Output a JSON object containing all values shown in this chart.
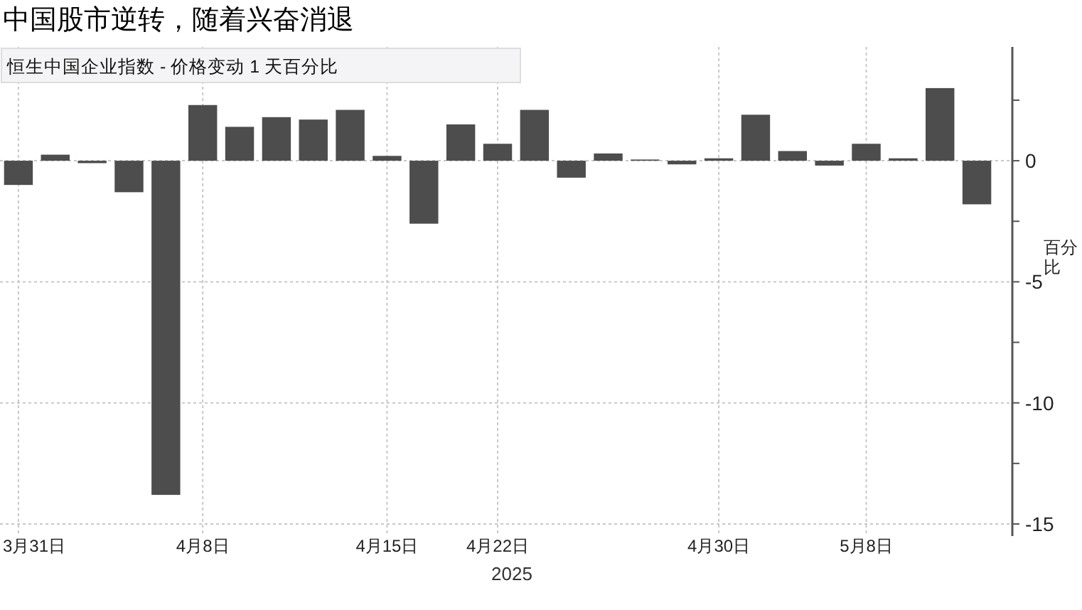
{
  "chart_data": {
    "type": "bar",
    "title": "中国股市逆转，随着兴奋消退",
    "subtitle": "恒生中国企业指数 - 价格变动 1 天百分比",
    "xlabel": "2025",
    "ylabel": "百分比",
    "categories": [
      "3月31日",
      null,
      null,
      null,
      null,
      "4月8日",
      null,
      null,
      null,
      null,
      "4月15日",
      null,
      null,
      "4月22日",
      null,
      null,
      null,
      null,
      null,
      "4月30日",
      null,
      null,
      null,
      "5月8日",
      null,
      null,
      null
    ],
    "values": [
      -1.0,
      0.25,
      -0.1,
      -1.3,
      -13.8,
      2.3,
      1.4,
      1.8,
      1.7,
      2.1,
      0.2,
      -2.6,
      1.5,
      0.7,
      2.1,
      -0.7,
      0.3,
      0.05,
      -0.15,
      0.1,
      1.9,
      0.4,
      -0.2,
      0.7,
      0.1,
      3.0,
      -1.8
    ],
    "color": "#4d4d4d",
    "ylim": [
      -15.5,
      4.7
    ],
    "yticks": [
      {
        "value": 2.5,
        "label": null
      },
      0,
      {
        "value": -2.5,
        "label": null
      },
      -5,
      {
        "value": -7.5,
        "label": null
      },
      -10,
      {
        "value": -12.5,
        "label": null
      },
      -15
    ],
    "grid": true
  }
}
